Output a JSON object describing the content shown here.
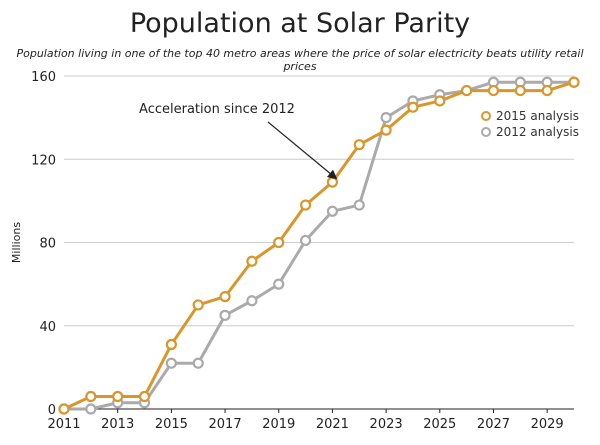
{
  "chart_data": {
    "type": "line",
    "title": "Population at Solar Parity",
    "subtitle": "Population living in one of the top 40 metro areas where the price of solar electricity beats utility retail prices",
    "ylabel": "Millions",
    "xlabel": "",
    "xlim": [
      2011,
      2030
    ],
    "ylim": [
      0,
      160
    ],
    "x_ticks": [
      "2011",
      "2013",
      "2015",
      "2017",
      "2019",
      "2021",
      "2023",
      "2025",
      "2027",
      "2029"
    ],
    "y_ticks": [
      "0",
      "40",
      "80",
      "120",
      "160"
    ],
    "grid": "horizontal",
    "legend_position": "right",
    "series": [
      {
        "name": "2015 analysis",
        "color": "#d9962b",
        "points": [
          [
            2011,
            0
          ],
          [
            2012,
            6
          ],
          [
            2013,
            6
          ],
          [
            2014,
            6
          ],
          [
            2015,
            31
          ],
          [
            2016,
            50
          ],
          [
            2017,
            54
          ],
          [
            2018,
            71
          ],
          [
            2019,
            80
          ],
          [
            2020,
            98
          ],
          [
            2021,
            109
          ],
          [
            2022,
            127
          ],
          [
            2023,
            134
          ],
          [
            2024,
            145
          ],
          [
            2025,
            148
          ],
          [
            2026,
            153
          ],
          [
            2027,
            153
          ],
          [
            2028,
            153
          ],
          [
            2029,
            153
          ],
          [
            2030,
            157
          ]
        ]
      },
      {
        "name": "2012 analysis",
        "color": "#aaaaaa",
        "points": [
          [
            2011,
            0
          ],
          [
            2012,
            0
          ],
          [
            2013,
            3
          ],
          [
            2014,
            3
          ],
          [
            2015,
            22
          ],
          [
            2016,
            22
          ],
          [
            2017,
            45
          ],
          [
            2018,
            52
          ],
          [
            2019,
            60
          ],
          [
            2020,
            81
          ],
          [
            2021,
            95
          ],
          [
            2022,
            98
          ],
          [
            2023,
            140
          ],
          [
            2024,
            148
          ],
          [
            2025,
            151
          ],
          [
            2026,
            153
          ],
          [
            2027,
            157
          ],
          [
            2028,
            157
          ],
          [
            2029,
            157
          ],
          [
            2030,
            157
          ]
        ]
      }
    ],
    "annotations": [
      {
        "text": "Acceleration since 2012",
        "points_to": [
          2021,
          103
        ]
      }
    ]
  }
}
